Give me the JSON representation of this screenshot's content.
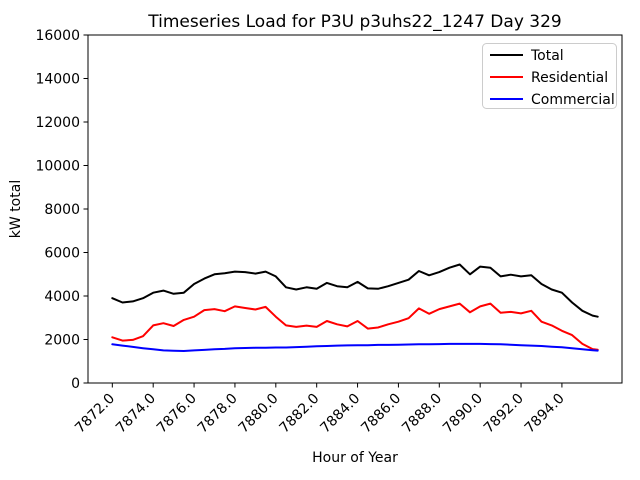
{
  "chart_data": {
    "type": "line",
    "title": "Timeseries Load for P3U p3uhs22_1247  Day 329",
    "xlabel": "Hour of Year",
    "ylabel": "kW total",
    "xlim": [
      7870.81,
      7896.94
    ],
    "ylim": [
      0,
      16000
    ],
    "grid": false,
    "xticks": {
      "values": [
        7872,
        7874,
        7876,
        7878,
        7880,
        7882,
        7884,
        7886,
        7888,
        7890,
        7892,
        7894
      ],
      "labels": [
        "7872.0",
        "7874.0",
        "7876.0",
        "7878.0",
        "7880.0",
        "7882.0",
        "7884.0",
        "7886.0",
        "7888.0",
        "7890.0",
        "7892.0",
        "7894.0"
      ],
      "rotation_deg": 45
    },
    "yticks": {
      "values": [
        0,
        2000,
        4000,
        6000,
        8000,
        10000,
        12000,
        14000,
        16000
      ],
      "labels": [
        "0",
        "2000",
        "4000",
        "6000",
        "8000",
        "10000",
        "12000",
        "14000",
        "16000"
      ]
    },
    "legend": {
      "position": "upper-right",
      "border_color": "#cccccc",
      "background": "#ffffff",
      "entries": [
        {
          "label": "Total",
          "color": "#000000"
        },
        {
          "label": "Residential",
          "color": "#ff0000"
        },
        {
          "label": "Commercial",
          "color": "#0000ff"
        }
      ]
    },
    "x": [
      7872.0,
      7872.5,
      7873.0,
      7873.5,
      7874.0,
      7874.5,
      7875.0,
      7875.5,
      7876.0,
      7876.5,
      7877.0,
      7877.5,
      7878.0,
      7878.5,
      7879.0,
      7879.5,
      7880.0,
      7880.5,
      7881.0,
      7881.5,
      7882.0,
      7882.5,
      7883.0,
      7883.5,
      7884.0,
      7884.5,
      7885.0,
      7885.5,
      7886.0,
      7886.5,
      7887.0,
      7887.5,
      7888.0,
      7888.5,
      7889.0,
      7889.5,
      7890.0,
      7890.5,
      7891.0,
      7891.5,
      7892.0,
      7892.5,
      7893.0,
      7893.5,
      7894.0,
      7894.5,
      7895.0,
      7895.5,
      7895.75
    ],
    "series": [
      {
        "name": "Total",
        "color": "#000000",
        "values": [
          3900,
          3700,
          3750,
          3900,
          4150,
          4250,
          4100,
          4150,
          4550,
          4800,
          5000,
          5050,
          5120,
          5100,
          5030,
          5120,
          4900,
          4400,
          4300,
          4400,
          4330,
          4600,
          4450,
          4400,
          4650,
          4350,
          4330,
          4450,
          4600,
          4750,
          5150,
          4950,
          5100,
          5300,
          5450,
          5000,
          5350,
          5300,
          4900,
          4980,
          4900,
          4950,
          4550,
          4300,
          4150,
          3700,
          3320,
          3100,
          3050
        ]
      },
      {
        "name": "Residential",
        "color": "#ff0000",
        "values": [
          2100,
          1950,
          1980,
          2150,
          2650,
          2750,
          2620,
          2900,
          3050,
          3350,
          3400,
          3300,
          3520,
          3450,
          3380,
          3500,
          3050,
          2650,
          2580,
          2640,
          2580,
          2850,
          2700,
          2600,
          2850,
          2500,
          2550,
          2700,
          2820,
          2980,
          3430,
          3180,
          3400,
          3520,
          3650,
          3250,
          3520,
          3650,
          3230,
          3270,
          3200,
          3320,
          2820,
          2650,
          2400,
          2200,
          1800,
          1560,
          1530
        ]
      },
      {
        "name": "Commercial",
        "color": "#0000ff",
        "values": [
          1780,
          1720,
          1660,
          1600,
          1550,
          1500,
          1480,
          1470,
          1500,
          1520,
          1550,
          1570,
          1600,
          1610,
          1620,
          1620,
          1630,
          1630,
          1650,
          1670,
          1690,
          1700,
          1720,
          1730,
          1740,
          1740,
          1750,
          1750,
          1760,
          1770,
          1780,
          1780,
          1790,
          1800,
          1800,
          1800,
          1800,
          1790,
          1780,
          1760,
          1740,
          1720,
          1700,
          1670,
          1640,
          1600,
          1550,
          1510,
          1490
        ]
      }
    ]
  }
}
